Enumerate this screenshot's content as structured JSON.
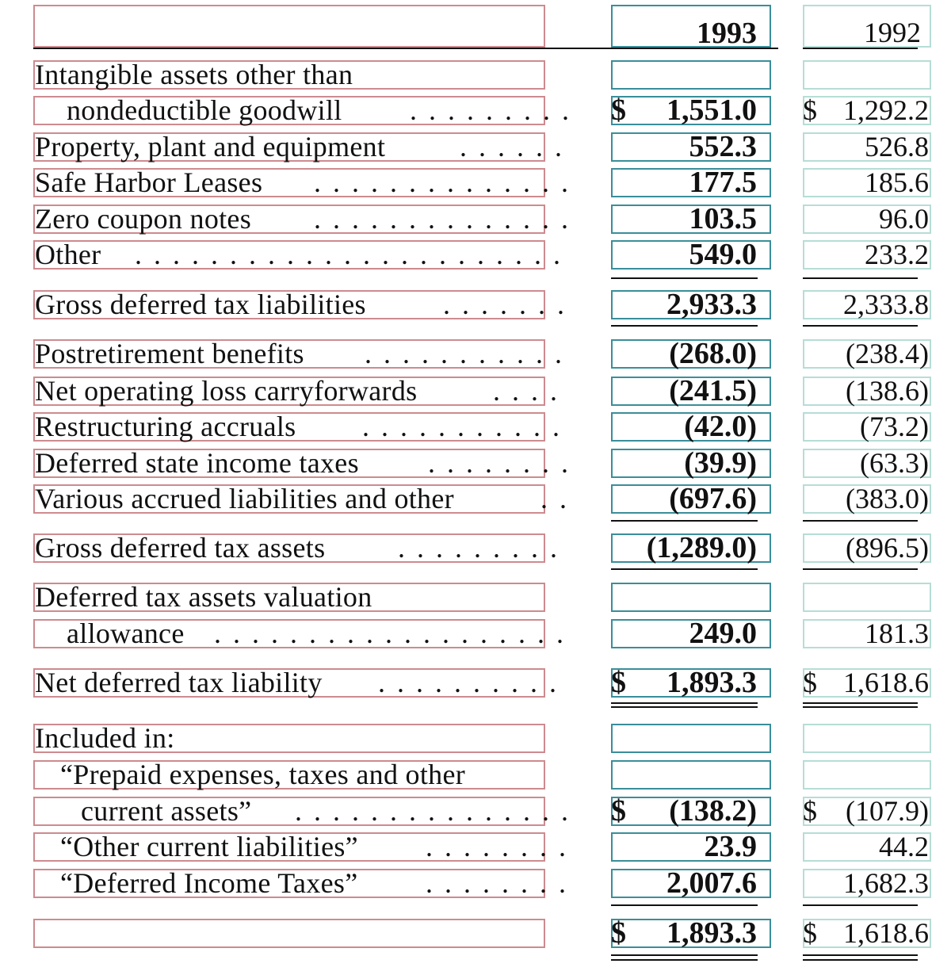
{
  "header": {
    "col_1993": "1993",
    "col_1992": "1992"
  },
  "rows": [
    {
      "label": "Intangible assets other than",
      "dots": "",
      "v1993": "",
      "v1992": ""
    },
    {
      "label": "nondeductible goodwill",
      "dots": " . . . . . . . . . .",
      "v1993": "1,551.0",
      "v1992": "1,292.2"
    },
    {
      "label": "Property, plant and equipment",
      "dots": " . . . . . . .",
      "v1993": "552.3",
      "v1992": "526.8"
    },
    {
      "label": "Safe Harbor Leases",
      "dots": "  . . . . . . . . . . . . . .",
      "v1993": "177.5",
      "v1992": "185.6"
    },
    {
      "label": "Zero coupon notes",
      "dots": "  . . . . . . . . . . . . . . .",
      "v1993": "103.5",
      "v1992": "96.0"
    },
    {
      "label": "Other",
      "dots": "  . . . . . . . . . . . . . . . . . . . . . . . . .",
      "v1993": "549.0",
      "v1992": "233.2"
    },
    {
      "label": "Gross deferred tax liabilities",
      "dots": "  . . . . . . .",
      "v1993": "2,933.3",
      "v1992": "2,333.8"
    },
    {
      "label": "Postretirement benefits",
      "dots": " . . . . . . . . . . . . .",
      "v1993": "(268.0)",
      "v1992": "(238.4)"
    },
    {
      "label": "Net operating loss carryforwards",
      "dots": " . . . . .",
      "v1993": "(241.5)",
      "v1992": "(138.6)"
    },
    {
      "label": "Restructuring accruals",
      "dots": "  . . . . . . . . . . . . .",
      "v1993": "(42.0)",
      "v1992": "(73.2)"
    },
    {
      "label": "Deferred state income taxes",
      "dots": " . . . . . . . . .",
      "v1993": "(39.9)",
      "v1992": "(63.3)"
    },
    {
      "label": "Various accrued liabilities and other",
      "dots": " . .",
      "v1993": "(697.6)",
      "v1992": "(383.0)"
    },
    {
      "label": "Gross deferred tax assets",
      "dots": "  . . . . . . . . . .",
      "v1993": "(1,289.0)",
      "v1992": "(896.5)"
    },
    {
      "label": "Deferred tax assets valuation",
      "dots": "",
      "v1993": "",
      "v1992": ""
    },
    {
      "label": "allowance",
      "dots": " . . . . . . . . . . . . . . . . . . . . . .",
      "v1993": "249.0",
      "v1992": "181.3"
    },
    {
      "label": "Net deferred tax liability",
      "dots": " . . . . . . . . . . . .",
      "v1993": "1,893.3",
      "v1992": "1,618.6"
    },
    {
      "label": "Included in:",
      "dots": "",
      "v1993": "",
      "v1992": ""
    },
    {
      "label": "“Prepaid expenses, taxes and other",
      "dots": "",
      "v1993": "",
      "v1992": ""
    },
    {
      "label": "current assets”",
      "dots": " . . . . . . . . . . . . . . . . . .",
      "v1993": "(138.2)",
      "v1992": "(107.9)"
    },
    {
      "label": "“Other current liabilities”",
      "dots": " . . . . . . . . . .",
      "v1993": "23.9",
      "v1992": "44.2"
    },
    {
      "label": "“Deferred Income Taxes”",
      "dots": " . . . . . . . . . .",
      "v1993": "2,007.6",
      "v1992": "1,682.3"
    },
    {
      "label": "",
      "dots": "",
      "v1993": "1,893.3",
      "v1992": "1,618.6"
    }
  ],
  "dollar_sign": "$"
}
